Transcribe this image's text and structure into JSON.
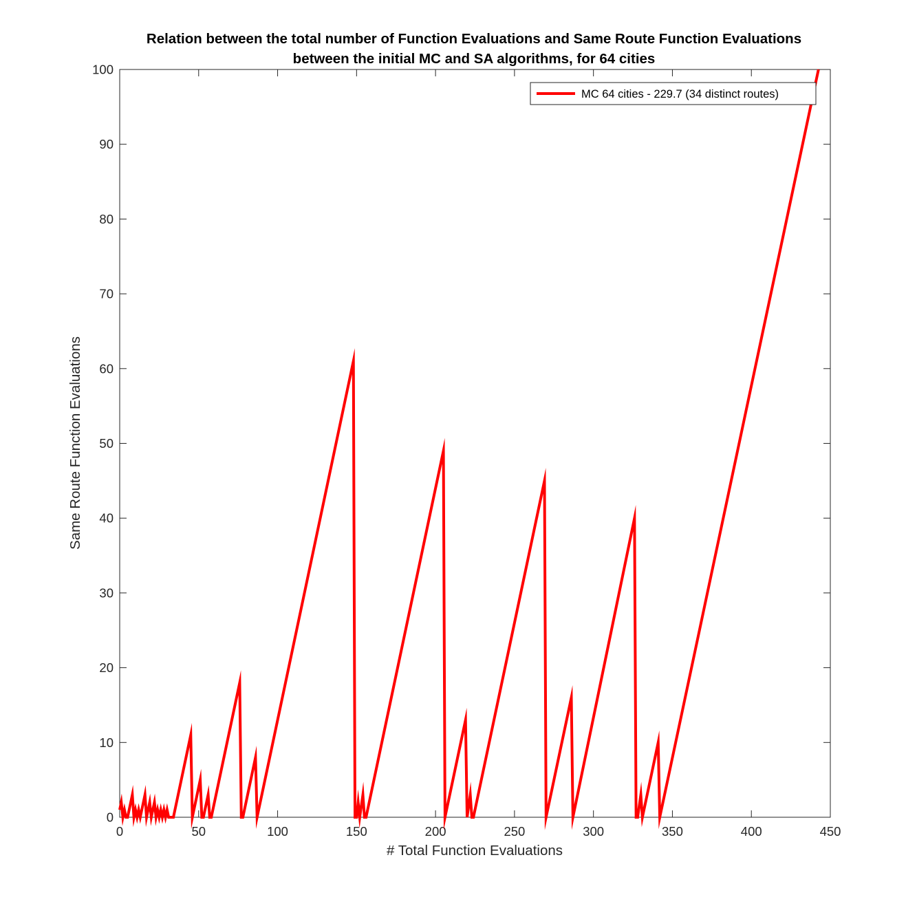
{
  "chart_data": {
    "type": "line",
    "title": [
      "Relation between the total number of Function Evaluations and Same Route Function Evaluations",
      "between the initial MC and SA algorithms, for 64 cities"
    ],
    "xlabel": "# Total Function Evaluations",
    "ylabel": "Same Route Function Evaluations",
    "xlim": [
      0,
      450
    ],
    "ylim": [
      0,
      100
    ],
    "xticks": [
      0,
      50,
      100,
      150,
      200,
      250,
      300,
      350,
      400,
      450
    ],
    "yticks": [
      0,
      10,
      20,
      30,
      40,
      50,
      60,
      70,
      80,
      90,
      100
    ],
    "grid": false,
    "legend_position": "top-right",
    "series": [
      {
        "name": "MC 64 cities - 229.7 (34 distinct routes)",
        "color": "#ff0000",
        "x": [
          0,
          1,
          2,
          3,
          4,
          5,
          6,
          7,
          8,
          9,
          10,
          11,
          12,
          13,
          14,
          15,
          16,
          17,
          18,
          19,
          20,
          21,
          22,
          23,
          24,
          25,
          26,
          27,
          28,
          29,
          30,
          31,
          32,
          33,
          34,
          45,
          46,
          51,
          52,
          53,
          56,
          57,
          58,
          76,
          77,
          78,
          86,
          87,
          148,
          149,
          150,
          151,
          152,
          154,
          155,
          156,
          205,
          206,
          219,
          220,
          222,
          223,
          224,
          269,
          270,
          286,
          287,
          326,
          327,
          328,
          330,
          331,
          341,
          342,
          442.5
        ],
        "y": [
          1,
          2,
          0,
          1,
          0,
          0,
          1,
          2,
          3,
          0,
          1,
          0,
          1,
          0,
          1,
          2,
          3,
          0,
          1,
          2,
          0,
          1,
          2,
          0,
          1,
          0,
          1,
          0,
          1,
          0,
          1,
          0,
          0,
          0,
          0,
          11,
          0,
          5,
          0,
          0,
          3,
          0,
          0,
          18,
          0,
          0,
          8,
          0,
          61,
          0,
          0,
          2,
          0,
          3,
          0,
          0,
          49,
          0,
          13,
          0,
          3,
          0,
          0,
          45,
          0,
          16,
          0,
          40,
          0,
          0,
          3,
          0,
          10,
          0,
          100
        ]
      }
    ]
  }
}
